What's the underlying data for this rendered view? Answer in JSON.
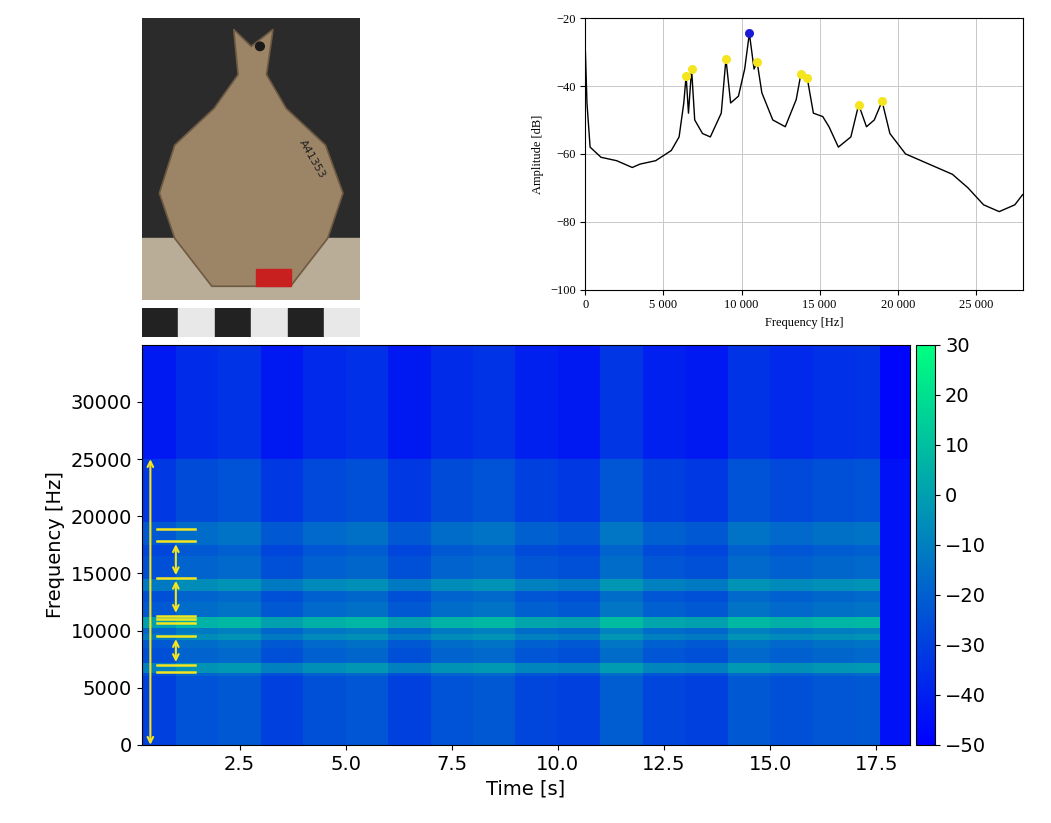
{
  "photo": {
    "label": "A41353"
  },
  "chart_data": [
    {
      "type": "line",
      "xlabel": "Frequency [Hz]",
      "ylabel": "Amplitude [dB]",
      "grid": true,
      "xlim": [
        0,
        28000
      ],
      "ylim": [
        -100,
        -20
      ],
      "xticks": [
        0,
        {
          "value": 5000,
          "label": "5 000"
        },
        {
          "value": 10000,
          "label": "10 000"
        },
        {
          "value": 15000,
          "label": "15 000"
        },
        {
          "value": 20000,
          "label": "20 000"
        },
        {
          "value": 25000,
          "label": "25 000"
        }
      ],
      "yticks": [
        {
          "value": -100,
          "label": "−100"
        },
        {
          "value": -80,
          "label": "−80"
        },
        {
          "value": -60,
          "label": "−60"
        },
        {
          "value": -40,
          "label": "−40"
        },
        {
          "value": -20,
          "label": "−20"
        }
      ],
      "series": [
        {
          "type": "line",
          "color": "#000000",
          "x": [
            0,
            100,
            300,
            1000,
            2000,
            3000,
            3500,
            4500,
            5500,
            6000,
            6300,
            6450,
            6600,
            6800,
            7000,
            7500,
            8000,
            8700,
            9000,
            9300,
            9800,
            10200,
            10500,
            10800,
            11000,
            11300,
            12000,
            12800,
            13500,
            13800,
            14200,
            14600,
            15200,
            15600,
            16200,
            17000,
            17500,
            18000,
            18500,
            19000,
            19500,
            20500,
            22000,
            23500,
            24500,
            25500,
            26500,
            27500,
            28000
          ],
          "values": [
            -30,
            -45,
            -58,
            -61,
            -62,
            -64,
            -63,
            -62,
            -59,
            -55,
            -45,
            -37,
            -48,
            -35,
            -50,
            -54,
            -55,
            -48,
            -32,
            -45,
            -43,
            -35,
            -24.5,
            -35,
            -33,
            -42,
            -50,
            -52,
            -44,
            -36.5,
            -37.5,
            -48,
            -49,
            -52,
            -58,
            -55,
            -45.5,
            -52,
            -50,
            -44.5,
            -54,
            -60,
            -63,
            -66,
            -70,
            -75,
            -77,
            -75,
            -72
          ]
        },
        {
          "type": "scatter",
          "color": "#f5e51e",
          "marker": "o",
          "x": [
            6450,
            6800,
            9000,
            11000,
            13800,
            14200,
            17500,
            19000
          ],
          "values": [
            -37,
            -35,
            -32,
            -33,
            -36.5,
            -37.5,
            -45.5,
            -44.5
          ]
        },
        {
          "type": "scatter",
          "color": "#1a1ad6",
          "marker": "o",
          "x": [
            10500
          ],
          "values": [
            -24.5
          ]
        }
      ]
    },
    {
      "type": "heatmap",
      "xlabel": "Time [s]",
      "ylabel": "Frequency [Hz]",
      "xlim": [
        0.2,
        18.3
      ],
      "ylim": [
        0,
        35000
      ],
      "xticks": [
        2.5,
        5.0,
        7.5,
        10.0,
        12.5,
        15.0,
        17.5
      ],
      "yticks": [
        0,
        5000,
        10000,
        15000,
        20000,
        25000,
        30000
      ],
      "x_edges": [
        0.2,
        1,
        2,
        3,
        4,
        5,
        6,
        7,
        8,
        9,
        10,
        11,
        12,
        13,
        14,
        15,
        16,
        17,
        17.6,
        18.3
      ],
      "y_edges": [
        0,
        4000,
        6000,
        6300,
        7200,
        8500,
        9200,
        9700,
        10200,
        11200,
        12500,
        13500,
        14500,
        16500,
        17500,
        19500,
        25000,
        35000
      ],
      "cells": [
        [
          -30,
          -24,
          -22,
          -30,
          -25,
          -23,
          -30,
          -24,
          -22,
          -28,
          -30,
          -21,
          -28,
          -30,
          -22,
          -25,
          -23,
          -22,
          -45
        ],
        [
          -30,
          -24,
          -22,
          -30,
          -25,
          -23,
          -30,
          -24,
          -22,
          -28,
          -30,
          -21,
          -28,
          -30,
          -22,
          -25,
          -23,
          -22,
          -45
        ],
        [
          -25,
          -19,
          -17,
          -25,
          -20,
          -18,
          -25,
          -19,
          -17,
          -23,
          -25,
          -16,
          -23,
          -25,
          -17,
          -20,
          -18,
          -17,
          -45
        ],
        [
          -10,
          -4,
          -2,
          -10,
          -5,
          -3,
          -10,
          -4,
          -2,
          -8,
          -10,
          -1,
          -8,
          -10,
          -2,
          -5,
          -3,
          -2,
          -45
        ],
        [
          -25,
          -19,
          -17,
          -25,
          -20,
          -18,
          -25,
          -19,
          -17,
          -23,
          -25,
          -16,
          -23,
          -25,
          -17,
          -20,
          -18,
          -17,
          -45
        ],
        [
          -22,
          -16,
          -14,
          -22,
          -17,
          -15,
          -22,
          -16,
          -14,
          -20,
          -22,
          -13,
          -20,
          -22,
          -14,
          -17,
          -15,
          -14,
          -45
        ],
        [
          -12,
          -6,
          -4,
          -12,
          -7,
          -5,
          -12,
          -6,
          -4,
          -10,
          -12,
          -3,
          -10,
          -12,
          -4,
          -7,
          -5,
          -4,
          -45
        ],
        [
          -18,
          -12,
          -10,
          -18,
          -13,
          -11,
          -18,
          -12,
          -10,
          -16,
          -18,
          -9,
          -16,
          -18,
          -10,
          -13,
          -11,
          -10,
          -45
        ],
        [
          0,
          6,
          8,
          0,
          5,
          7,
          0,
          6,
          8,
          2,
          0,
          9,
          2,
          0,
          8,
          5,
          7,
          8,
          -45
        ],
        [
          -22,
          -16,
          -14,
          -22,
          -17,
          -15,
          -22,
          -16,
          -14,
          -20,
          -22,
          -13,
          -20,
          -22,
          -14,
          -17,
          -15,
          -14,
          -45
        ],
        [
          -25,
          -19,
          -17,
          -25,
          -20,
          -18,
          -25,
          -19,
          -17,
          -23,
          -25,
          -16,
          -23,
          -25,
          -17,
          -20,
          -18,
          -17,
          -45
        ],
        [
          -12,
          -6,
          -4,
          -12,
          -7,
          -5,
          -12,
          -6,
          -4,
          -10,
          -12,
          -3,
          -10,
          -12,
          -4,
          -7,
          -5,
          -4,
          -45
        ],
        [
          -25,
          -19,
          -17,
          -25,
          -20,
          -18,
          -25,
          -19,
          -17,
          -23,
          -25,
          -16,
          -23,
          -25,
          -17,
          -20,
          -18,
          -17,
          -45
        ],
        [
          -28,
          -22,
          -20,
          -28,
          -23,
          -21,
          -28,
          -22,
          -20,
          -26,
          -28,
          -19,
          -26,
          -28,
          -20,
          -23,
          -21,
          -20,
          -45
        ],
        [
          -22,
          -16,
          -14,
          -22,
          -17,
          -15,
          -22,
          -16,
          -14,
          -20,
          -22,
          -13,
          -20,
          -22,
          -14,
          -17,
          -15,
          -14,
          -45
        ],
        [
          -32,
          -26,
          -24,
          -32,
          -27,
          -25,
          -32,
          -26,
          -24,
          -30,
          -32,
          -23,
          -30,
          -32,
          -24,
          -27,
          -25,
          -24,
          -45
        ],
        [
          -42,
          -36,
          -34,
          -42,
          -37,
          -35,
          -42,
          -36,
          -34,
          -40,
          -42,
          -33,
          -40,
          -42,
          -34,
          -37,
          -35,
          -34,
          -48
        ]
      ],
      "colorbar_range": [
        -50,
        30
      ],
      "colorbar_ticks": [
        {
          "value": -50,
          "label": "−50"
        },
        {
          "value": -40,
          "label": "−40"
        },
        {
          "value": -30,
          "label": "−30"
        },
        {
          "value": -20,
          "label": "−20"
        },
        {
          "value": -10,
          "label": "−10"
        },
        0,
        10,
        20,
        30
      ],
      "color": "#f5e51e",
      "marked_frequencies": [
        6400,
        7000,
        9500,
        10700,
        11000,
        11300,
        14600,
        17800,
        18900
      ],
      "marked_intervals": [
        [
          7000,
          9500
        ],
        [
          11300,
          14600
        ],
        [
          14600,
          17800
        ]
      ],
      "marked_range": [
        0,
        25000
      ]
    }
  ]
}
